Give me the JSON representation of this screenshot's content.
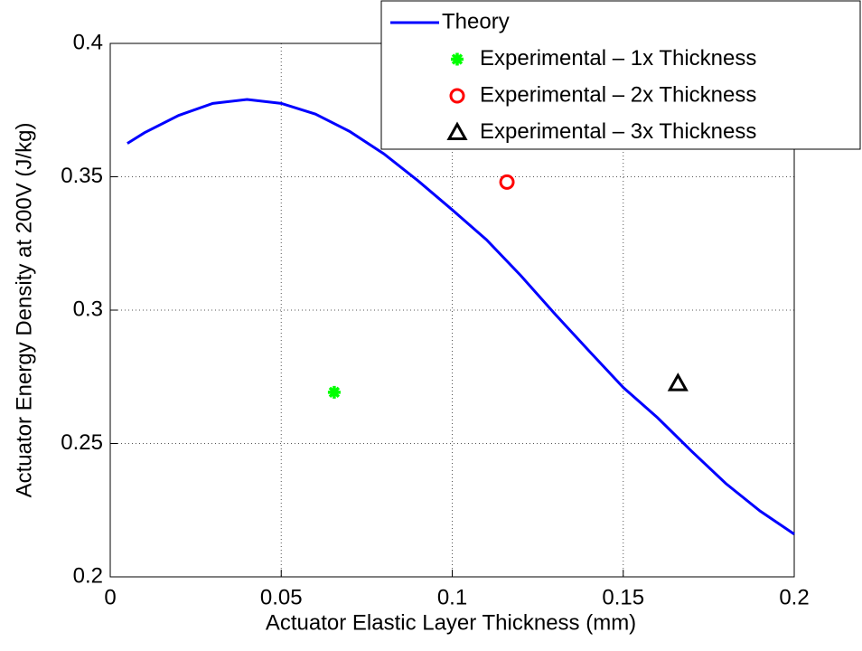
{
  "chart_data": {
    "type": "line",
    "xlabel": "Actuator Elastic Layer Thickness (mm)",
    "ylabel": "Actuator Energy Density at 200V (J/kg)",
    "xlim": [
      0,
      0.2
    ],
    "xticks": [
      0,
      0.05,
      0.1,
      0.15,
      0.2
    ],
    "ylim": [
      0.2,
      0.4
    ],
    "yticks": [
      0.2,
      0.25,
      0.3,
      0.35,
      0.4
    ],
    "grid": true,
    "legend": "upper right",
    "series": [
      {
        "name": "Theory",
        "color": "#0000ff",
        "marker": "none",
        "x": [
          0.005,
          0.01,
          0.02,
          0.03,
          0.04,
          0.05,
          0.06,
          0.07,
          0.08,
          0.09,
          0.1,
          0.11,
          0.12,
          0.13,
          0.14,
          0.15,
          0.16,
          0.17,
          0.18,
          0.19,
          0.2
        ],
        "values": [
          0.3625,
          0.3665,
          0.373,
          0.3775,
          0.379,
          0.3775,
          0.3735,
          0.367,
          0.3586,
          0.3485,
          0.3376,
          0.3264,
          0.313,
          0.2986,
          0.2847,
          0.271,
          0.2597,
          0.2471,
          0.235,
          0.2247,
          0.216
        ]
      },
      {
        "name": "Experimental – 1x Thickness",
        "color": "#00ff00",
        "marker": "asterisk",
        "x": [
          0.0655
        ],
        "values": [
          0.2692
        ]
      },
      {
        "name": "Experimental – 2x Thickness",
        "color": "#ff0000",
        "marker": "circle",
        "x": [
          0.116
        ],
        "values": [
          0.348
        ]
      },
      {
        "name": "Experimental – 3x Thickness",
        "color": "#000000",
        "marker": "triangle",
        "x": [
          0.166
        ],
        "values": [
          0.2725
        ]
      }
    ]
  }
}
